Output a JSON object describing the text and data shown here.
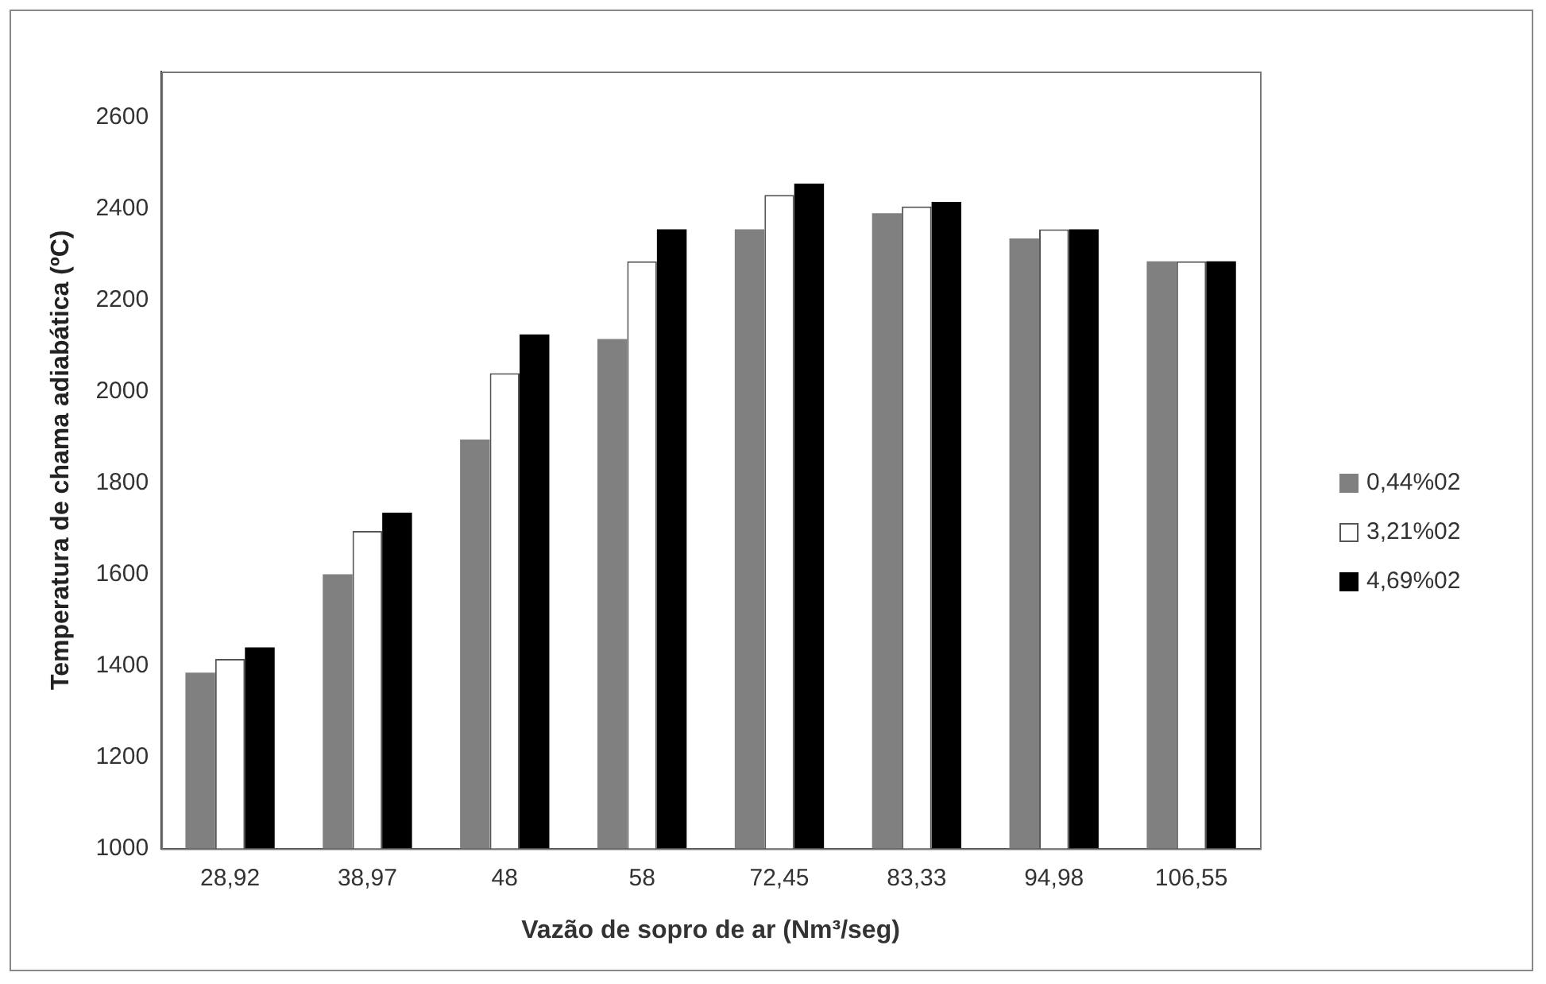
{
  "chart_data": {
    "type": "bar",
    "xlabel": "Vazão de sopro de ar (Nm³/seg)",
    "ylabel": "Temperatura de chama adiabática (ºC)",
    "categories": [
      "28,92",
      "38,97",
      "48",
      "58",
      "72,45",
      "83,33",
      "94,98",
      "106,55"
    ],
    "series": [
      {
        "name": "0,44%02",
        "color": "#808080",
        "values": [
          1385,
          1600,
          1895,
          2115,
          2355,
          2390,
          2335,
          2285
        ]
      },
      {
        "name": "3,21%02",
        "color": "#ffffff",
        "values": [
          1415,
          1695,
          2040,
          2285,
          2430,
          2405,
          2355,
          2285
        ]
      },
      {
        "name": "4,69%02",
        "color": "#000000",
        "values": [
          1440,
          1735,
          2125,
          2355,
          2455,
          2415,
          2355,
          2285
        ]
      }
    ],
    "ylim": [
      1000,
      2700
    ],
    "yticks": [
      1000,
      1200,
      1400,
      1600,
      1800,
      2000,
      2200,
      2400,
      2600
    ],
    "grid": false,
    "legend": "right"
  }
}
